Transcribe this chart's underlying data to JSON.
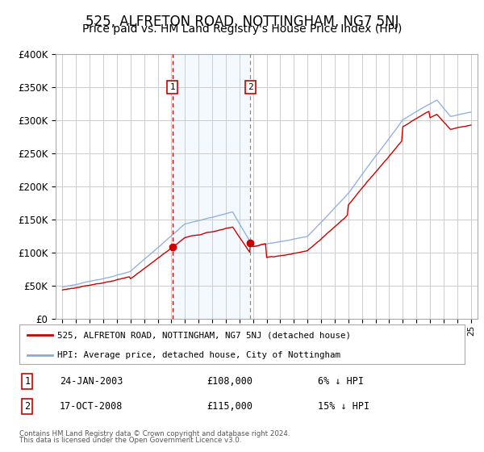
{
  "title": "525, ALFRETON ROAD, NOTTINGHAM, NG7 5NJ",
  "subtitle": "Price paid vs. HM Land Registry's House Price Index (HPI)",
  "title_fontsize": 12,
  "subtitle_fontsize": 10,
  "ylabel_ticks": [
    "£0",
    "£50K",
    "£100K",
    "£150K",
    "£200K",
    "£250K",
    "£300K",
    "£350K",
    "£400K"
  ],
  "ylim": [
    0,
    400000
  ],
  "xlim_start": 1994.5,
  "xlim_end": 2025.5,
  "sale1_x": 2003.07,
  "sale1_y": 108000,
  "sale1_label": "1",
  "sale1_date": "24-JAN-2003",
  "sale1_price": "£108,000",
  "sale1_hpi": "6% ↓ HPI",
  "sale2_x": 2008.8,
  "sale2_y": 115000,
  "sale2_label": "2",
  "sale2_date": "17-OCT-2008",
  "sale2_price": "£115,000",
  "sale2_hpi": "15% ↓ HPI",
  "property_color": "#cc0000",
  "hpi_color": "#88aadd",
  "shade_color": "#ddeeff",
  "grid_color": "#cccccc",
  "background_color": "#ffffff",
  "legend_line1": "525, ALFRETON ROAD, NOTTINGHAM, NG7 5NJ (detached house)",
  "legend_line2": "HPI: Average price, detached house, City of Nottingham",
  "footer1": "Contains HM Land Registry data © Crown copyright and database right 2024.",
  "footer2": "This data is licensed under the Open Government Licence v3.0."
}
